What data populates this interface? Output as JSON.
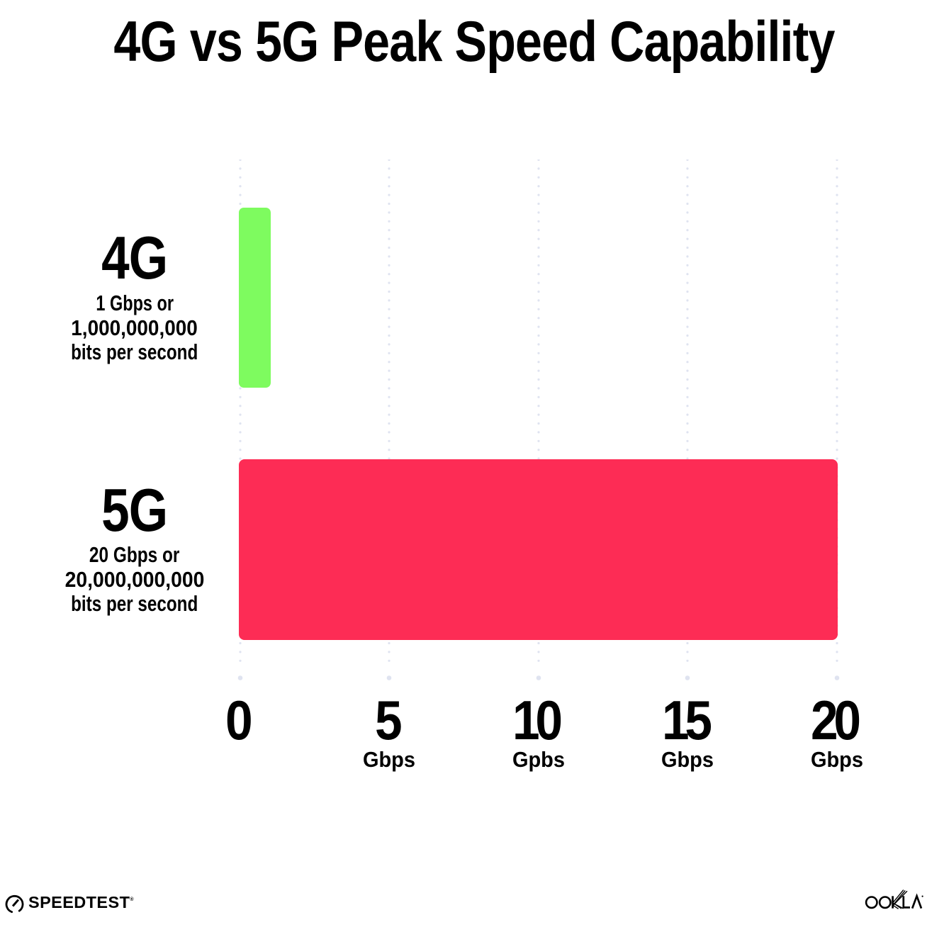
{
  "title": "4G vs 5G Peak Speed Capability",
  "chart_data": {
    "type": "bar",
    "orientation": "horizontal",
    "title": "4G vs 5G Peak Speed Capability",
    "xlabel": "",
    "ylabel": "",
    "xlim": [
      0,
      20
    ],
    "grid": "dotted-vertical-gridlines",
    "legend": "none",
    "categories": [
      "4G",
      "5G"
    ],
    "values": [
      1,
      20
    ],
    "unit": "Gbps",
    "rows": [
      {
        "name": "4G",
        "value": 1,
        "sublabel_lines": [
          "1 Gbps or",
          "1,000,000,000",
          "bits per second"
        ],
        "bar_color": "#7efb5f"
      },
      {
        "name": "5G",
        "value": 20,
        "sublabel_lines": [
          "20 Gbps or",
          "20,000,000,000",
          "bits per second"
        ],
        "bar_color": "#fd2c55"
      }
    ],
    "x_ticks": [
      {
        "value": 0,
        "label": "0",
        "unit": ""
      },
      {
        "value": 5,
        "label": "5",
        "unit": "Gbps"
      },
      {
        "value": 10,
        "label": "10",
        "unit": "Gpbs"
      },
      {
        "value": 15,
        "label": "15",
        "unit": "Gbps"
      },
      {
        "value": 20,
        "label": "20",
        "unit": "Gbps"
      }
    ]
  },
  "footer": {
    "speedtest_label": "SPEEDTEST",
    "speedtest_trademark": "®",
    "speedtest_icon": "speedometer-gauge-icon",
    "ookla_label": "OOKLA",
    "ookla_trademark": "®"
  },
  "colors": {
    "background": "#ffffff",
    "text": "#000000",
    "bar_4g": "#7efb5f",
    "bar_5g": "#fd2c55",
    "gridline_dots": "#dfe3f0"
  }
}
